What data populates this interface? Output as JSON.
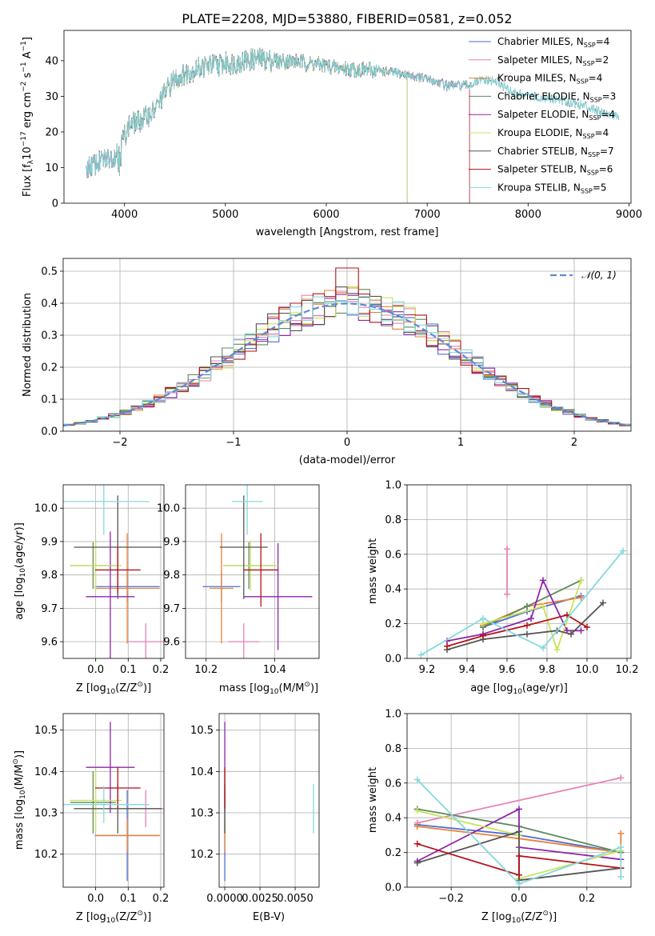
{
  "title": "PLATE=2208, MJD=53880, FIBERID=0581, z=0.052",
  "colors": {
    "Chabrier MILES": "#4f6ed0",
    "Salpeter MILES": "#e583b6",
    "Kroupa MILES": "#e8823a",
    "Chabrier ELODIE": "#5e8a5e",
    "Salpeter ELODIE": "#8e24aa",
    "Kroupa ELODIE": "#c9e35a",
    "Chabrier STELIB": "#555555",
    "Salpeter STELIB": "#b3121a",
    "Kroupa STELIB": "#85d9dd"
  },
  "chart_data": [
    {
      "id": "spectrum",
      "type": "line",
      "title": "PLATE=2208, MJD=53880, FIBERID=0581, z=0.052",
      "xlabel": "wavelength [Angstrom, rest frame]",
      "ylabel_parts": [
        "Flux [f",
        "λ",
        "10",
        "−17",
        " erg cm",
        "−2",
        " s",
        "−1",
        " A",
        "−1",
        "]"
      ],
      "xlim": [
        3400,
        9020
      ],
      "ylim": [
        0,
        48.5
      ],
      "xticks": [
        4000,
        5000,
        6000,
        7000,
        8000,
        9000
      ],
      "yticks": [
        0,
        10,
        20,
        30,
        40
      ],
      "continuum": [
        [
          3620,
          10
        ],
        [
          3720,
          11
        ],
        [
          3820,
          12.5
        ],
        [
          3900,
          13.5
        ],
        [
          3970,
          17
        ],
        [
          4050,
          22
        ],
        [
          4150,
          23
        ],
        [
          4300,
          26
        ],
        [
          4400,
          31
        ],
        [
          4500,
          35
        ],
        [
          4650,
          37
        ],
        [
          4800,
          38.5
        ],
        [
          4950,
          39
        ],
        [
          5100,
          39.5
        ],
        [
          5300,
          40.5
        ],
        [
          5500,
          40
        ],
        [
          5700,
          39.8
        ],
        [
          5900,
          39
        ],
        [
          6100,
          38
        ],
        [
          6300,
          37.5
        ],
        [
          6500,
          37.3
        ],
        [
          6700,
          36.5
        ],
        [
          6900,
          35.5
        ],
        [
          7050,
          34.5
        ],
        [
          7200,
          33
        ],
        [
          7400,
          33
        ],
        [
          7550,
          34.5
        ],
        [
          7700,
          34
        ],
        [
          7850,
          31
        ],
        [
          8000,
          30
        ],
        [
          8200,
          29.5
        ],
        [
          8400,
          28.5
        ],
        [
          8600,
          27
        ],
        [
          8800,
          25
        ],
        [
          8950,
          24
        ]
      ],
      "legend": [
        "Chabrier MILES, N_SSP=4",
        "Salpeter MILES, N_SSP=2",
        "Kroupa MILES, N_SSP=4",
        "Chabrier ELODIE, N_SSP=3",
        "Salpeter ELODIE, N_SSP=4",
        "Kroupa ELODIE, N_SSP=4",
        "Chabrier STELIB, N_SSP=7",
        "Salpeter STELIB, N_SSP=6",
        "Kroupa STELIB, N_SSP=5"
      ],
      "legend_labels": [
        {
          "name": "Chabrier MILES",
          "n": "4"
        },
        {
          "name": "Salpeter MILES",
          "n": "2"
        },
        {
          "name": "Kroupa MILES",
          "n": "4"
        },
        {
          "name": "Chabrier ELODIE",
          "n": "3"
        },
        {
          "name": "Salpeter ELODIE",
          "n": "4"
        },
        {
          "name": "Kroupa ELODIE",
          "n": "4"
        },
        {
          "name": "Chabrier STELIB",
          "n": "7"
        },
        {
          "name": "Salpeter STELIB",
          "n": "6"
        },
        {
          "name": "Kroupa STELIB",
          "n": "5"
        }
      ],
      "legend_position": "upper right",
      "series_ranges": {
        "Chabrier MILES": [
          3620,
          7400
        ],
        "Salpeter MILES": [
          3620,
          7400
        ],
        "Kroupa MILES": [
          3620,
          7400
        ],
        "Chabrier ELODIE": [
          3900,
          6800
        ],
        "Salpeter ELODIE": [
          3900,
          6800
        ],
        "Kroupa ELODIE": [
          3900,
          6800
        ],
        "Chabrier STELIB": [
          3620,
          8900
        ],
        "Salpeter STELIB": [
          3620,
          7420
        ],
        "Kroupa STELIB": [
          3620,
          8900
        ]
      }
    },
    {
      "id": "residuals",
      "type": "line",
      "xlabel": "(data-model)/error",
      "ylabel": "Normed distribution",
      "xlim": [
        -2.5,
        2.5
      ],
      "ylim": [
        0,
        0.54
      ],
      "xticks": [
        -2,
        -1,
        0,
        1,
        2
      ],
      "yticks": [
        0.0,
        0.1,
        0.2,
        0.3,
        0.4,
        0.5
      ],
      "grid": true,
      "bin_width": 0.1,
      "legend": [
        "𝒩(0, 1)"
      ],
      "legend_position": "upper right"
    },
    {
      "id": "age_vs_Z",
      "type": "scatter",
      "xlabel_parts": [
        "Z [log",
        "10",
        "(Z/Z",
        "⊙",
        ")]"
      ],
      "ylabel_parts": [
        "age  [log",
        "10",
        "(age/yr)]"
      ],
      "xlim": [
        -0.1,
        0.21
      ],
      "ylim": [
        9.55,
        10.07
      ],
      "xticks": [
        0.0,
        0.1,
        0.2
      ],
      "yticks": [
        9.6,
        9.7,
        9.8,
        9.9,
        10.0
      ],
      "grid": true,
      "points": [
        {
          "series": "Chabrier MILES",
          "x": 0.097,
          "y": 9.765,
          "xerr": 0.1,
          "yerr": 0.045
        },
        {
          "series": "Salpeter MILES",
          "x": 0.154,
          "y": 9.6,
          "xerr": 0.055,
          "yerr": 0.055
        },
        {
          "series": "Kroupa MILES",
          "x": 0.097,
          "y": 9.76,
          "xerr": 0.1,
          "yerr": 0.165
        },
        {
          "series": "Chabrier ELODIE",
          "x": -0.008,
          "y": 9.828,
          "xerr": 0.07,
          "yerr": 0.07
        },
        {
          "series": "Salpeter ELODIE",
          "x": 0.045,
          "y": 9.735,
          "xerr": 0.075,
          "yerr": 0.195
        },
        {
          "series": "Kroupa ELODIE",
          "x": 0.0,
          "y": 9.828,
          "xerr": 0.08,
          "yerr": 0.075
        },
        {
          "series": "Chabrier STELIB",
          "x": 0.068,
          "y": 9.883,
          "xerr": 0.135,
          "yerr": 0.155
        },
        {
          "series": "Salpeter STELIB",
          "x": 0.068,
          "y": 9.815,
          "xerr": 0.07,
          "yerr": 0.07
        },
        {
          "series": "Kroupa STELIB",
          "x": 0.025,
          "y": 10.02,
          "xerr": 0.14,
          "yerr": 0.1
        }
      ]
    },
    {
      "id": "age_vs_mass",
      "type": "scatter",
      "xlabel_parts": [
        "mass [log",
        "10",
        "(M/M",
        "⊙",
        ")]"
      ],
      "xlim": [
        10.14,
        10.53
      ],
      "ylim": [
        9.55,
        10.07
      ],
      "xticks": [
        10.2,
        10.4
      ],
      "yticks": [
        9.6,
        9.7,
        9.8,
        9.9,
        10.0
      ],
      "grid": true,
      "points": [
        {
          "series": "Chabrier MILES",
          "x": 10.245,
          "y": 9.765,
          "xerr": 0.055,
          "yerr": 0.045
        },
        {
          "series": "Salpeter MILES",
          "x": 10.31,
          "y": 9.6,
          "xerr": 0.045,
          "yerr": 0.055
        },
        {
          "series": "Kroupa MILES",
          "x": 10.245,
          "y": 9.76,
          "xerr": 0.035,
          "yerr": 0.165
        },
        {
          "series": "Chabrier ELODIE",
          "x": 10.325,
          "y": 9.828,
          "xerr": 0.075,
          "yerr": 0.07
        },
        {
          "series": "Salpeter ELODIE",
          "x": 10.41,
          "y": 9.735,
          "xerr": 0.1,
          "yerr": 0.16
        },
        {
          "series": "Kroupa ELODIE",
          "x": 10.33,
          "y": 9.828,
          "xerr": 0.08,
          "yerr": 0.075
        },
        {
          "series": "Chabrier STELIB",
          "x": 10.31,
          "y": 9.883,
          "xerr": 0.07,
          "yerr": 0.155
        },
        {
          "series": "Salpeter STELIB",
          "x": 10.36,
          "y": 9.815,
          "xerr": 0.05,
          "yerr": 0.11
        },
        {
          "series": "Kroupa STELIB",
          "x": 10.32,
          "y": 10.02,
          "xerr": 0.045,
          "yerr": 0.1
        }
      ]
    },
    {
      "id": "mass_weight_vs_age",
      "type": "line",
      "xlabel_parts": [
        "age  [log",
        "10",
        "(age/yr)]"
      ],
      "ylabel": "mass weight",
      "xlim": [
        9.1,
        10.22
      ],
      "ylim": [
        0,
        1.0
      ],
      "xticks": [
        9.2,
        9.4,
        9.6,
        9.8,
        10.0,
        10.2
      ],
      "yticks": [
        0.0,
        0.2,
        0.4,
        0.6,
        0.8,
        1.0
      ],
      "grid": true,
      "series": [
        {
          "name": "Chabrier MILES",
          "x": [
            9.48,
            9.7,
            9.97
          ],
          "y": [
            0.18,
            0.27,
            0.36
          ]
        },
        {
          "name": "Salpeter MILES",
          "x": [
            9.6,
            9.6
          ],
          "y": [
            0.37,
            0.63
          ]
        },
        {
          "name": "Kroupa MILES",
          "x": [
            9.48,
            9.7,
            9.97
          ],
          "y": [
            0.19,
            0.3,
            0.35
          ]
        },
        {
          "name": "Chabrier ELODIE",
          "x": [
            9.48,
            9.7,
            9.97
          ],
          "y": [
            0.18,
            0.3,
            0.45
          ]
        },
        {
          "name": "Salpeter ELODIE",
          "x": [
            9.3,
            9.48,
            9.72,
            9.78,
            9.9,
            9.97
          ],
          "y": [
            0.1,
            0.14,
            0.23,
            0.45,
            0.16,
            0.16
          ]
        },
        {
          "name": "Kroupa ELODIE",
          "x": [
            9.48,
            9.78,
            9.85,
            9.97
          ],
          "y": [
            0.2,
            0.3,
            0.05,
            0.45
          ]
        },
        {
          "name": "Chabrier STELIB",
          "x": [
            9.3,
            9.48,
            9.7,
            9.85,
            9.92,
            10.08
          ],
          "y": [
            0.05,
            0.11,
            0.14,
            0.16,
            0.14,
            0.32
          ]
        },
        {
          "name": "Salpeter STELIB",
          "x": [
            9.3,
            9.48,
            9.7,
            9.9,
            10.0
          ],
          "y": [
            0.07,
            0.13,
            0.19,
            0.25,
            0.18
          ]
        },
        {
          "name": "Kroupa STELIB",
          "x": [
            9.17,
            9.48,
            9.78,
            10.18
          ],
          "y": [
            0.02,
            0.23,
            0.06,
            0.62
          ]
        }
      ]
    },
    {
      "id": "mass_vs_Z",
      "type": "scatter",
      "xlabel_parts": [
        "Z [log",
        "10",
        "(Z/Z",
        "⊙",
        ")]"
      ],
      "ylabel_parts": [
        "mass [log",
        "10",
        "(M/M",
        "⊙",
        ")]"
      ],
      "xlim": [
        -0.1,
        0.21
      ],
      "ylim": [
        10.12,
        10.54
      ],
      "xticks": [
        0.0,
        0.1,
        0.2
      ],
      "yticks": [
        10.2,
        10.3,
        10.4,
        10.5
      ],
      "grid": true,
      "points": [
        {
          "series": "Chabrier MILES",
          "x": 0.097,
          "y": 10.245,
          "xerr": 0.1,
          "yerr": 0.11
        },
        {
          "series": "Salpeter MILES",
          "x": 0.154,
          "y": 10.31,
          "xerr": 0.055,
          "yerr": 0.045
        },
        {
          "series": "Kroupa MILES",
          "x": 0.097,
          "y": 10.245,
          "xerr": 0.1,
          "yerr": 0.04
        },
        {
          "series": "Chabrier ELODIE",
          "x": -0.008,
          "y": 10.325,
          "xerr": 0.07,
          "yerr": 0.075
        },
        {
          "series": "Salpeter ELODIE",
          "x": 0.045,
          "y": 10.41,
          "xerr": 0.075,
          "yerr": 0.11
        },
        {
          "series": "Kroupa ELODIE",
          "x": 0.0,
          "y": 10.33,
          "xerr": 0.08,
          "yerr": 0.075
        },
        {
          "series": "Chabrier STELIB",
          "x": 0.068,
          "y": 10.31,
          "xerr": 0.135,
          "yerr": 0.06
        },
        {
          "series": "Salpeter STELIB",
          "x": 0.068,
          "y": 10.36,
          "xerr": 0.07,
          "yerr": 0.05
        },
        {
          "series": "Kroupa STELIB",
          "x": 0.025,
          "y": 10.32,
          "xerr": 0.14,
          "yerr": 0.045
        }
      ]
    },
    {
      "id": "mass_vs_ebv",
      "type": "scatter",
      "xlabel": "E(B-V)",
      "xlim": [
        -0.0004,
        0.0067
      ],
      "ylim": [
        10.12,
        10.54
      ],
      "xticks": [
        0.0,
        0.0025,
        0.005
      ],
      "xtick_labels": [
        "0.0000",
        "0.0025",
        "0.0050"
      ],
      "yticks": [
        10.2,
        10.3,
        10.4,
        10.5
      ],
      "grid": true,
      "points": [
        {
          "series": "Chabrier MILES",
          "x": 0.0,
          "y": 10.245,
          "yerr": 0.11
        },
        {
          "series": "Kroupa MILES",
          "x": 0.0,
          "y": 10.245,
          "yerr": 0.04
        },
        {
          "series": "Salpeter ELODIE",
          "x": 0.0,
          "y": 10.41,
          "yerr": 0.11
        },
        {
          "series": "Kroupa ELODIE",
          "x": 0.0,
          "y": 10.33,
          "yerr": 0.075
        },
        {
          "series": "Chabrier STELIB",
          "x": 0.0,
          "y": 10.31,
          "yerr": 0.06
        },
        {
          "series": "Salpeter STELIB",
          "x": 0.0,
          "y": 10.36,
          "yerr": 0.05
        },
        {
          "series": "Kroupa STELIB",
          "x": 0.0063,
          "y": 10.31,
          "yerr": 0.06
        }
      ]
    },
    {
      "id": "mass_weight_vs_Z",
      "type": "line",
      "xlabel_parts": [
        "Z [log",
        "10",
        "(Z/Z",
        "⊙",
        ")]"
      ],
      "ylabel": "mass weight",
      "xlim": [
        -0.33,
        0.33
      ],
      "ylim": [
        0,
        1.0
      ],
      "xticks": [
        -0.2,
        0.0,
        0.2
      ],
      "yticks": [
        0.0,
        0.2,
        0.4,
        0.6,
        0.8,
        1.0
      ],
      "grid": true,
      "series": [
        {
          "name": "Chabrier MILES",
          "x": [
            -0.3,
            0.0,
            0.3
          ],
          "y": [
            0.36,
            0.3,
            0.2
          ]
        },
        {
          "name": "Salpeter MILES",
          "x": [
            -0.3,
            0.3
          ],
          "y": [
            0.37,
            0.63
          ]
        },
        {
          "name": "Kroupa MILES",
          "x": [
            -0.3,
            0.0,
            0.3,
            0.3
          ],
          "y": [
            0.35,
            0.28,
            0.2,
            0.31
          ]
        },
        {
          "name": "Chabrier ELODIE",
          "x": [
            -0.3,
            0.0,
            0.3
          ],
          "y": [
            0.45,
            0.35,
            0.2
          ]
        },
        {
          "name": "Salpeter ELODIE",
          "x": [
            -0.3,
            0.0,
            0.0,
            0.3
          ],
          "y": [
            0.15,
            0.45,
            0.23,
            0.16
          ]
        },
        {
          "name": "Kroupa ELODIE",
          "x": [
            -0.3,
            0.0,
            0.0,
            0.3
          ],
          "y": [
            0.44,
            0.3,
            0.05,
            0.21
          ]
        },
        {
          "name": "Chabrier STELIB",
          "x": [
            -0.3,
            0.0,
            0.0,
            0.3
          ],
          "y": [
            0.14,
            0.32,
            0.04,
            0.11
          ]
        },
        {
          "name": "Salpeter STELIB",
          "x": [
            -0.3,
            0.0,
            0.0,
            0.3
          ],
          "y": [
            0.25,
            0.07,
            0.18,
            0.11
          ]
        },
        {
          "name": "Kroupa STELIB",
          "x": [
            -0.3,
            0.0,
            0.3,
            0.3
          ],
          "y": [
            0.62,
            0.02,
            0.23,
            0.06
          ]
        }
      ]
    }
  ]
}
